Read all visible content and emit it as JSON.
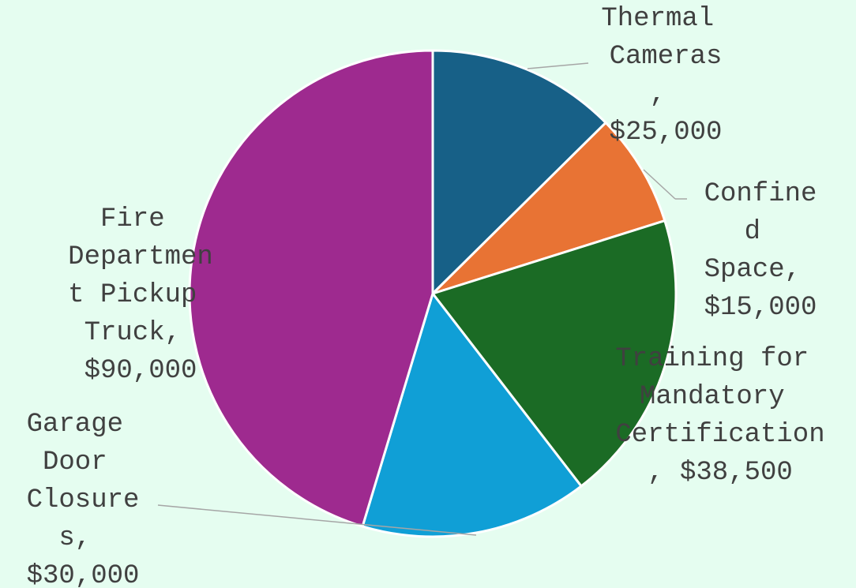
{
  "chart_data": {
    "type": "pie",
    "values": [
      25000,
      15000,
      38500,
      30000,
      90000
    ],
    "value_labels": [
      "Thermal Cameras, $25,000",
      "Confined Space, $15,000",
      "Training for Mandatory Certification, $38,500",
      "Garage Door Closures, $30,000",
      "Fire Department Pickup Truck, $90,000"
    ],
    "colors": [
      "#176087",
      "#e87334",
      "#1b6b25",
      "#109fd6",
      "#9e2a8f"
    ]
  }
}
